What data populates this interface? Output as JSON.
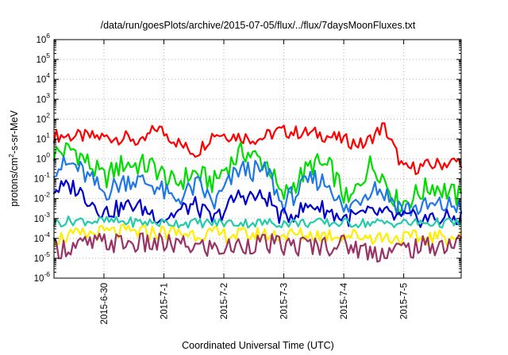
{
  "chart_data": {
    "type": "line",
    "title": "/data/run/goesPlots/archive/2015-07-05/flux/../flux/7daysMoonFluxes.txt",
    "xlabel": "Coordinated Universal Time (UTC)",
    "ylabel": {
      "base": "protons/cm",
      "sup": "2",
      "rest": "-s-sr-MeV"
    },
    "yscale": "log",
    "ylim_exp": [
      -6,
      6
    ],
    "y_ticks": [
      {
        "base": "10",
        "exp": "-6"
      },
      {
        "base": "10",
        "exp": "-5"
      },
      {
        "base": "10",
        "exp": "-4"
      },
      {
        "base": "10",
        "exp": "-3"
      },
      {
        "base": "10",
        "exp": "-2"
      },
      {
        "base": "10",
        "exp": "-1"
      },
      {
        "base": "10",
        "exp": "0"
      },
      {
        "base": "10",
        "exp": "1"
      },
      {
        "base": "10",
        "exp": "2"
      },
      {
        "base": "10",
        "exp": "3"
      },
      {
        "base": "10",
        "exp": "4"
      },
      {
        "base": "10",
        "exp": "5"
      },
      {
        "base": "10",
        "exp": "6"
      }
    ],
    "x_range_days": [
      "2015-06-29T04:00",
      "2015-07-05T23:00"
    ],
    "x_ticks": [
      "2015-6-30",
      "2015-7-1",
      "2015-7-2",
      "2015-7-3",
      "2015-7-4",
      "2015-7-5"
    ],
    "grid": true,
    "legend": "none",
    "series": [
      {
        "color": "#ff0000",
        "anchors": [
          [
            "2015-06-29T04:00",
            15
          ],
          [
            "2015-06-29T18:00",
            13
          ],
          [
            "2015-06-30T12:00",
            11
          ],
          [
            "2015-06-30T14:00",
            4
          ],
          [
            "2015-06-30T21:00",
            40
          ],
          [
            "2015-07-01T08:00",
            4
          ],
          [
            "2015-07-01T13:00",
            2
          ],
          [
            "2015-07-01T20:00",
            20
          ],
          [
            "2015-07-02T14:00",
            10
          ],
          [
            "2015-07-02T22:00",
            25
          ],
          [
            "2015-07-03T14:00",
            18
          ],
          [
            "2015-07-04T08:00",
            5
          ],
          [
            "2015-07-04T16:00",
            45
          ],
          [
            "2015-07-05T00:00",
            0.3
          ],
          [
            "2015-07-05T12:00",
            0.5
          ],
          [
            "2015-07-05T23:00",
            0.8
          ]
        ],
        "amplitude": 0.35
      },
      {
        "color": "#00dd00",
        "anchors": [
          [
            "2015-06-29T04:00",
            2
          ],
          [
            "2015-06-29T12:00",
            3
          ],
          [
            "2015-06-30T00:00",
            0.1
          ],
          [
            "2015-06-30T08:00",
            0.6
          ],
          [
            "2015-06-30T20:00",
            0.4
          ],
          [
            "2015-07-01T04:00",
            0.05
          ],
          [
            "2015-07-01T12:00",
            0.2
          ],
          [
            "2015-07-01T20:00",
            0.06
          ],
          [
            "2015-07-02T00:00",
            0.3
          ],
          [
            "2015-07-02T08:00",
            2.5
          ],
          [
            "2015-07-02T18:00",
            0.5
          ],
          [
            "2015-07-02T23:00",
            0.01
          ],
          [
            "2015-07-03T06:00",
            0.1
          ],
          [
            "2015-07-03T12:00",
            0.6
          ],
          [
            "2015-07-03T19:00",
            0.3
          ],
          [
            "2015-07-04T02:00",
            0.005
          ],
          [
            "2015-07-04T10:00",
            0.5
          ],
          [
            "2015-07-04T14:00",
            0.3
          ],
          [
            "2015-07-04T22:00",
            0.005
          ],
          [
            "2015-07-05T12:00",
            0.05
          ],
          [
            "2015-07-05T23:00",
            0.01
          ]
        ],
        "amplitude": 0.6
      },
      {
        "color": "#1e78e6",
        "anchors": [
          [
            "2015-06-29T04:00",
            0.4
          ],
          [
            "2015-06-29T12:00",
            0.5
          ],
          [
            "2015-06-30T00:00",
            0.02
          ],
          [
            "2015-06-30T10:00",
            0.1
          ],
          [
            "2015-06-30T20:00",
            0.05
          ],
          [
            "2015-07-01T04:00",
            0.008
          ],
          [
            "2015-07-01T14:00",
            0.05
          ],
          [
            "2015-07-01T20:00",
            0.005
          ],
          [
            "2015-07-02T06:00",
            0.3
          ],
          [
            "2015-07-02T18:00",
            0.2
          ],
          [
            "2015-07-02T23:00",
            0.005
          ],
          [
            "2015-07-03T12:00",
            0.1
          ],
          [
            "2015-07-03T19:00",
            0.05
          ],
          [
            "2015-07-04T00:00",
            0.002
          ],
          [
            "2015-07-04T12:00",
            0.05
          ],
          [
            "2015-07-05T00:00",
            0.003
          ],
          [
            "2015-07-05T23:00",
            0.005
          ]
        ],
        "amplitude": 0.55
      },
      {
        "color": "#0000cc",
        "anchors": [
          [
            "2015-06-29T04:00",
            0.03
          ],
          [
            "2015-06-29T12:00",
            0.04
          ],
          [
            "2015-06-30T00:00",
            0.002
          ],
          [
            "2015-06-30T12:00",
            0.005
          ],
          [
            "2015-07-01T00:00",
            0.001
          ],
          [
            "2015-07-01T12:00",
            0.005
          ],
          [
            "2015-07-01T20:00",
            0.0008
          ],
          [
            "2015-07-02T06:00",
            0.015
          ],
          [
            "2015-07-02T18:00",
            0.01
          ],
          [
            "2015-07-02T23:00",
            0.001
          ],
          [
            "2015-07-03T12:00",
            0.005
          ],
          [
            "2015-07-04T00:00",
            0.001
          ],
          [
            "2015-07-04T14:00",
            0.002
          ],
          [
            "2015-07-04T23:00",
            0.001
          ],
          [
            "2015-07-05T23:00",
            0.001
          ]
        ],
        "amplitude": 0.45
      },
      {
        "color": "#22ccaa",
        "anchors": [
          [
            "2015-06-29T04:00",
            0.0006
          ],
          [
            "2015-06-29T12:00",
            0.0008
          ],
          [
            "2015-07-01T00:00",
            0.0006
          ],
          [
            "2015-07-02T00:00",
            0.0006
          ],
          [
            "2015-07-03T00:00",
            0.0006
          ],
          [
            "2015-07-04T00:00",
            0.0006
          ],
          [
            "2015-07-05T00:00",
            0.0006
          ],
          [
            "2015-07-05T23:00",
            0.0006
          ]
        ],
        "amplitude": 0.25
      },
      {
        "color": "#ffee00",
        "anchors": [
          [
            "2015-06-29T04:00",
            0.0001
          ],
          [
            "2015-06-30T00:00",
            0.0002
          ],
          [
            "2015-07-01T00:00",
            0.0002
          ],
          [
            "2015-07-02T00:00",
            0.00015
          ],
          [
            "2015-07-03T00:00",
            0.00015
          ],
          [
            "2015-07-04T00:00",
            0.00015
          ],
          [
            "2015-07-05T00:00",
            0.0001
          ],
          [
            "2015-07-05T23:00",
            0.00012
          ]
        ],
        "amplitude": 0.4
      },
      {
        "color": "#993366",
        "anchors": [
          [
            "2015-06-29T04:00",
            3e-05
          ],
          [
            "2015-06-30T00:00",
            6e-05
          ],
          [
            "2015-07-01T00:00",
            5e-05
          ],
          [
            "2015-07-02T00:00",
            3e-05
          ],
          [
            "2015-07-02T12:00",
            6e-05
          ],
          [
            "2015-07-03T00:00",
            4e-05
          ],
          [
            "2015-07-04T00:00",
            5e-05
          ],
          [
            "2015-07-04T12:00",
            2e-05
          ],
          [
            "2015-07-05T00:00",
            3e-05
          ],
          [
            "2015-07-05T23:00",
            6e-05
          ]
        ],
        "amplitude": 0.55
      }
    ]
  }
}
